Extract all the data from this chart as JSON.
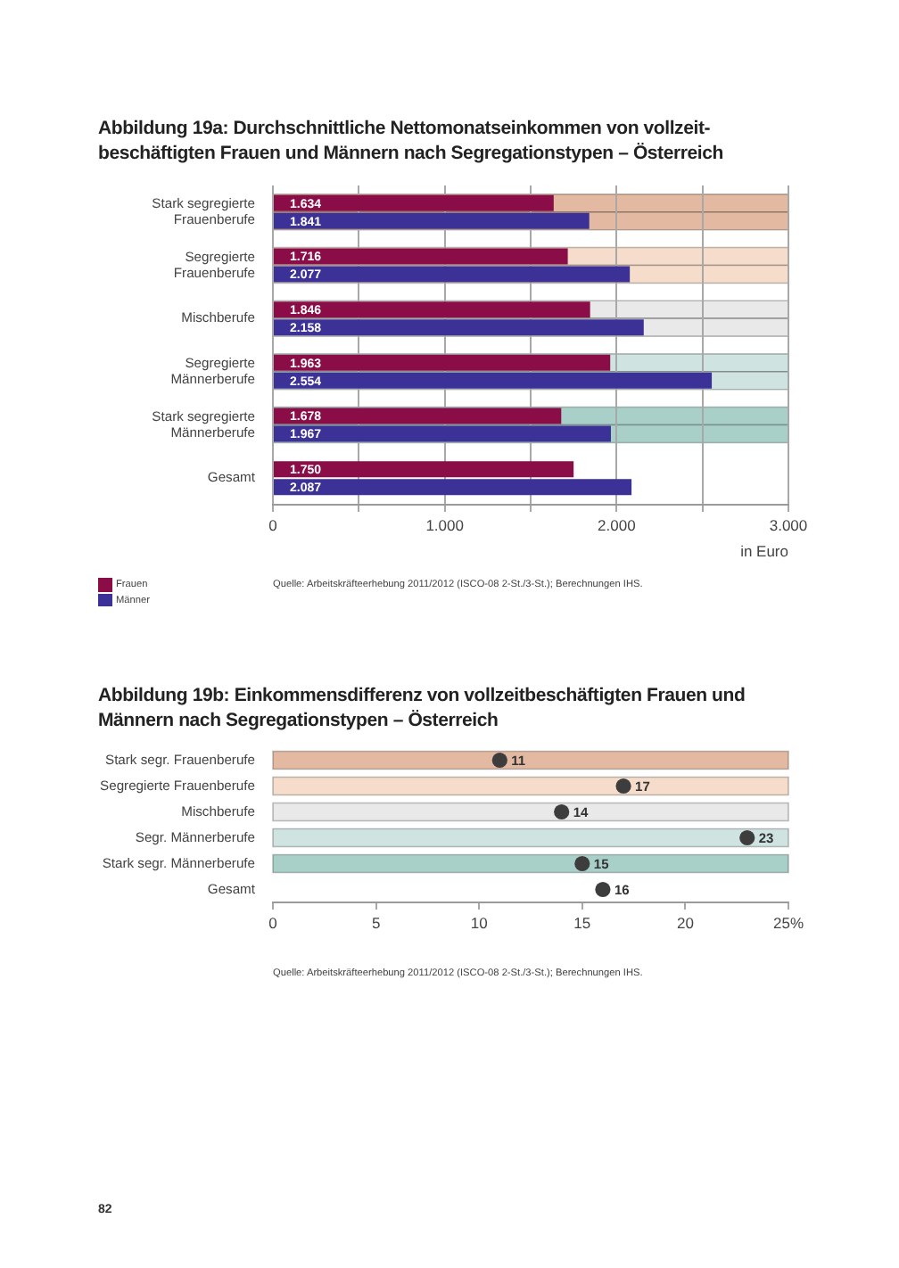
{
  "chart_data": [
    {
      "type": "bar",
      "orientation": "horizontal",
      "title": "Abbildung 19a: Durchschnittliche Nettomonatseinkommen von vollzeit-\nbeschäftigten Frauen und Männern nach Segregationstypen – Österreich",
      "xlabel": "in Euro",
      "categories": [
        "Stark segregierte\nFrauenberufe",
        "Segregierte\nFrauenberufe",
        "Mischberufe",
        "Segregierte\nMännerberufe",
        "Stark segregierte\nMännerberufe",
        "Gesamt"
      ],
      "series": [
        {
          "name": "Frauen",
          "color": "#8a0d47",
          "values": [
            1634,
            1716,
            1846,
            1963,
            1678,
            1750
          ],
          "value_labels": [
            "1.634",
            "1.716",
            "1.846",
            "1.963",
            "1.678",
            "1.750"
          ]
        },
        {
          "name": "Männer",
          "color": "#3b3196",
          "values": [
            1841,
            2077,
            2158,
            2554,
            1967,
            2087
          ],
          "value_labels": [
            "1.841",
            "2.077",
            "2.158",
            "2.554",
            "1.967",
            "2.087"
          ]
        }
      ],
      "xlim": [
        0,
        3000
      ],
      "xticks": [
        0,
        {
          "value": 500,
          "label": null
        },
        {
          "value": 1000,
          "label": "1.000"
        },
        {
          "value": 1500,
          "label": null
        },
        {
          "value": 2000,
          "label": "2.000"
        },
        {
          "value": 2500,
          "label": null
        },
        {
          "value": 3000,
          "label": "3.000"
        }
      ],
      "grid": "x",
      "legend": "bottom left",
      "bands": [
        {
          "axis": "y",
          "from": "Stark segregierte\nFrauenberufe",
          "to": "Stark segregierte\nFrauenberufe",
          "color": "#e3b9a1"
        },
        {
          "axis": "y",
          "from": "Segregierte\nFrauenberufe",
          "to": "Segregierte\nFrauenberufe",
          "color": "#f6dcca"
        },
        {
          "axis": "y",
          "from": "Mischberufe",
          "to": "Mischberufe",
          "color": "#e9e9e9"
        },
        {
          "axis": "y",
          "from": "Segregierte\nMännerberufe",
          "to": "Segregierte\nMännerberufe",
          "color": "#cfe4e0"
        },
        {
          "axis": "y",
          "from": "Stark segregierte\nMännerberufe",
          "to": "Stark segregierte\nMännerberufe",
          "color": "#a9cfc9"
        }
      ],
      "annotations": [
        "Quelle: Arbeitskräfteerhebung 2011/2012 (ISCO-08 2-St./3-St.); Berechnungen IHS."
      ]
    },
    {
      "type": "scatter",
      "orientation": "horizontal",
      "title": "Abbildung 19b: Einkommensdifferenz von vollzeitbeschäftigten Frauen und\nMännern nach Segregationstypen – Österreich",
      "categories": [
        "Stark segr. Frauenberufe",
        "Segregierte Frauenberufe",
        "Mischberufe",
        "Segr. Männerberufe",
        "Stark segr. Männerberufe",
        "Gesamt"
      ],
      "values": [
        11,
        17,
        14,
        23,
        15,
        16
      ],
      "color": "#3d3d3d",
      "marker": "circle",
      "data_labels": true,
      "xlim": [
        0,
        25
      ],
      "xticks": [
        0,
        5,
        10,
        15,
        20,
        {
          "value": 25,
          "label": "25%"
        }
      ],
      "bands": [
        {
          "axis": "y",
          "from": "Stark segr. Frauenberufe",
          "to": "Stark segr. Frauenberufe",
          "color": "#e3b9a1"
        },
        {
          "axis": "y",
          "from": "Segregierte Frauenberufe",
          "to": "Segregierte Frauenberufe",
          "color": "#f6dcca"
        },
        {
          "axis": "y",
          "from": "Mischberufe",
          "to": "Mischberufe",
          "color": "#e9e9e9"
        },
        {
          "axis": "y",
          "from": "Segr. Männerberufe",
          "to": "Segr. Männerberufe",
          "color": "#cfe4e0"
        },
        {
          "axis": "y",
          "from": "Stark segr. Männerberufe",
          "to": "Stark segr. Männerberufe",
          "color": "#a9cfc9"
        }
      ],
      "annotations": [
        "Quelle: Arbeitskräfteerhebung 2011/2012 (ISCO-08 2-St./3-St.); Berechnungen IHS.",
        "82"
      ]
    }
  ]
}
